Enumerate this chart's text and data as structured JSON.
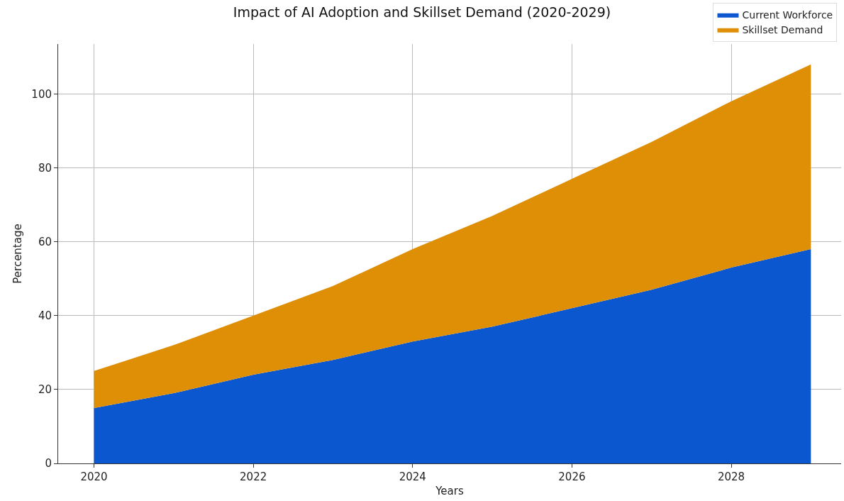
{
  "chart_data": {
    "type": "area",
    "title": "Impact of AI Adoption and Skillset Demand (2020-2029)",
    "xlabel": "Years",
    "ylabel": "Percentage",
    "x": [
      2020,
      2021,
      2022,
      2023,
      2024,
      2025,
      2026,
      2027,
      2028,
      2029
    ],
    "stacked": true,
    "series": [
      {
        "name": "Current Workforce",
        "color": "#0b57d0",
        "values": [
          15,
          19,
          24,
          28,
          33,
          37,
          42,
          47,
          53,
          58
        ]
      },
      {
        "name": "Skillset Demand",
        "color": "#de8f05",
        "values": [
          10,
          13,
          16,
          20,
          25,
          30,
          35,
          40,
          45,
          50
        ]
      }
    ],
    "xlim": [
      2019.55,
      2029.38
    ],
    "xticks": [
      2020,
      2022,
      2024,
      2026,
      2028
    ],
    "ylim": [
      0,
      113.5
    ],
    "yticks": [
      0,
      20,
      40,
      60,
      80,
      100
    ],
    "grid": true,
    "legend": "top right"
  }
}
